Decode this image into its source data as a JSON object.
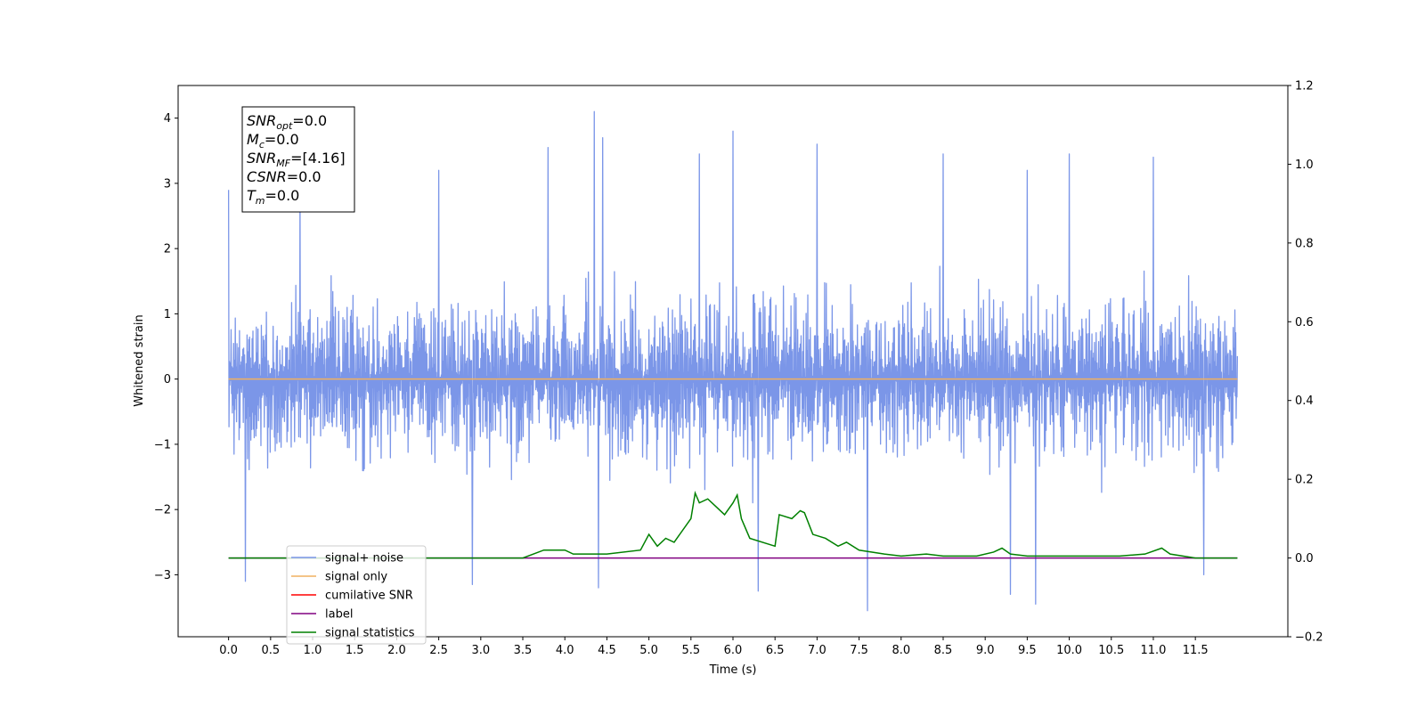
{
  "chart_data": {
    "type": "line",
    "xlabel": "Time (s)",
    "ylabel": "Whitened strain",
    "xlim": [
      -0.6,
      12.6
    ],
    "ylim": [
      -3.95,
      4.5
    ],
    "y2lim": [
      -0.2,
      1.2
    ],
    "x_ticks": [
      0.0,
      0.5,
      1.0,
      1.5,
      2.0,
      2.5,
      3.0,
      3.5,
      4.0,
      4.5,
      5.0,
      5.5,
      6.0,
      6.5,
      7.0,
      7.5,
      8.0,
      8.5,
      9.0,
      9.5,
      10.0,
      10.5,
      11.0,
      11.5
    ],
    "x_tick_labels": [
      "0.0",
      "0.5",
      "1.0",
      "1.5",
      "2.0",
      "2.5",
      "3.0",
      "3.5",
      "4.0",
      "4.5",
      "5.0",
      "5.5",
      "6.0",
      "6.5",
      "7.0",
      "7.5",
      "8.0",
      "8.5",
      "9.0",
      "9.5",
      "10.0",
      "10.5",
      "11.0",
      "11.5"
    ],
    "y_ticks": [
      -3,
      -2,
      -1,
      0,
      1,
      2,
      3,
      4
    ],
    "y_tick_labels": [
      "−3",
      "−2",
      "−1",
      "0",
      "1",
      "2",
      "3",
      "4"
    ],
    "y2_ticks": [
      -0.2,
      0.0,
      0.2,
      0.4,
      0.6,
      0.8,
      1.0,
      1.2
    ],
    "y2_tick_labels": [
      "−0.2",
      "0.0",
      "0.2",
      "0.4",
      "0.6",
      "0.8",
      "1.0",
      "1.2"
    ],
    "grid": false,
    "legend_position": "lower-left",
    "annotation_box": {
      "lines": [
        {
          "main": "SNR",
          "sub": "opt",
          "rest": "=0.0"
        },
        {
          "main": "M",
          "sub": "c",
          "rest": "=0.0"
        },
        {
          "main": "SNR",
          "sub": "MF",
          "rest": "=[4.16]"
        },
        {
          "main": "CSNR",
          "sub": "",
          "rest": "=0.0"
        },
        {
          "main": "T",
          "sub": "m",
          "rest": "=0.0"
        }
      ]
    },
    "series": [
      {
        "name": "signal+ noise",
        "color": "#7b96e8",
        "axis": "left",
        "x_range": [
          0.0,
          12.0
        ],
        "envelope_upper_typical": 1.6,
        "envelope_lower_typical": -1.6,
        "max_value": 4.1,
        "min_value": -3.55,
        "peaks": [
          {
            "x": 0.0,
            "y": 2.9
          },
          {
            "x": 0.2,
            "y": 3.1
          },
          {
            "x": 0.85,
            "y": 3.0
          },
          {
            "x": 2.5,
            "y": 3.2
          },
          {
            "x": 3.8,
            "y": 3.55
          },
          {
            "x": 4.35,
            "y": 4.1
          },
          {
            "x": 4.45,
            "y": 3.7
          },
          {
            "x": 5.6,
            "y": 3.45
          },
          {
            "x": 6.0,
            "y": 3.8
          },
          {
            "x": 7.0,
            "y": 3.6
          },
          {
            "x": 8.5,
            "y": 3.45
          },
          {
            "x": 9.5,
            "y": 3.2
          },
          {
            "x": 10.0,
            "y": 3.45
          },
          {
            "x": 11.0,
            "y": 3.4
          }
        ],
        "troughs": [
          {
            "x": 0.2,
            "y": -3.1
          },
          {
            "x": 2.9,
            "y": -3.15
          },
          {
            "x": 4.4,
            "y": -3.2
          },
          {
            "x": 6.3,
            "y": -3.25
          },
          {
            "x": 7.6,
            "y": -3.55
          },
          {
            "x": 9.3,
            "y": -3.3
          },
          {
            "x": 9.6,
            "y": -3.45
          },
          {
            "x": 11.6,
            "y": -3.0
          }
        ]
      },
      {
        "name": "signal only",
        "color": "#f0b060",
        "axis": "left",
        "x": [
          0.0,
          12.0
        ],
        "y": [
          0.0,
          0.0
        ]
      },
      {
        "name": "cumilative SNR",
        "color": "#ff0000",
        "axis": "right",
        "x": [],
        "y": []
      },
      {
        "name": "label",
        "color": "#800080",
        "axis": "right",
        "x": [
          0.0,
          12.0
        ],
        "y": [
          0.0,
          0.0
        ]
      },
      {
        "name": "signal statistics",
        "color": "#008000",
        "axis": "right",
        "x": [
          0.0,
          3.5,
          3.75,
          3.85,
          4.0,
          4.1,
          4.5,
          4.9,
          5.0,
          5.1,
          5.2,
          5.3,
          5.5,
          5.55,
          5.6,
          5.7,
          5.8,
          5.9,
          6.0,
          6.05,
          6.1,
          6.2,
          6.5,
          6.55,
          6.7,
          6.8,
          6.85,
          6.95,
          7.1,
          7.25,
          7.35,
          7.5,
          7.8,
          8.0,
          8.3,
          8.5,
          8.9,
          9.1,
          9.2,
          9.3,
          9.5,
          9.8,
          10.2,
          10.6,
          10.9,
          11.1,
          11.2,
          11.5,
          12.0
        ],
        "y": [
          0.0,
          0.0,
          0.02,
          0.02,
          0.02,
          0.01,
          0.01,
          0.02,
          0.06,
          0.03,
          0.05,
          0.04,
          0.1,
          0.165,
          0.14,
          0.15,
          0.13,
          0.11,
          0.14,
          0.16,
          0.1,
          0.05,
          0.03,
          0.11,
          0.1,
          0.12,
          0.115,
          0.06,
          0.05,
          0.03,
          0.04,
          0.02,
          0.01,
          0.005,
          0.01,
          0.005,
          0.005,
          0.015,
          0.025,
          0.01,
          0.005,
          0.005,
          0.005,
          0.005,
          0.01,
          0.025,
          0.01,
          0.0,
          0.0
        ]
      }
    ]
  }
}
